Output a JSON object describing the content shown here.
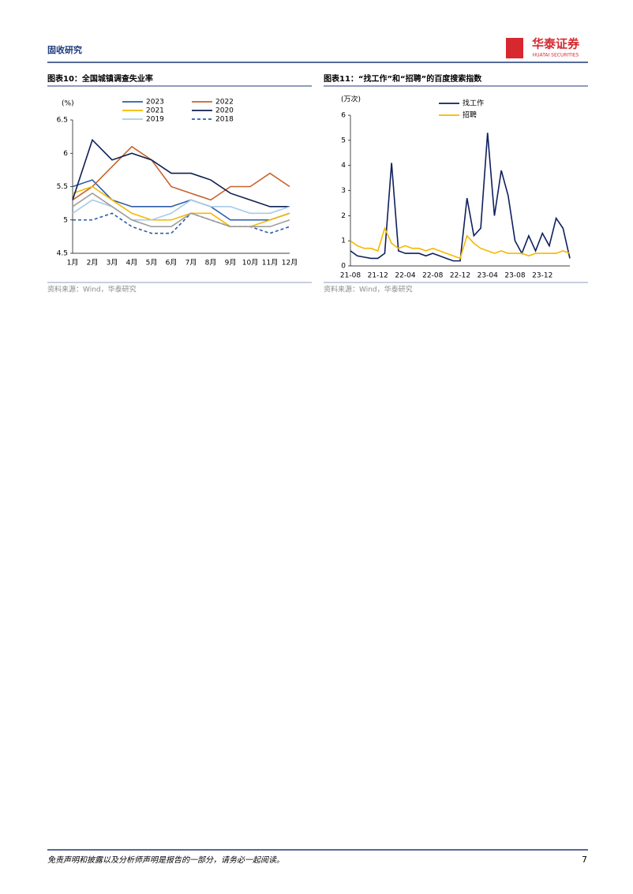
{
  "header": {
    "section": "固收研究",
    "logo_cn": "华泰证券",
    "logo_en": "HUATAI SECURITIES"
  },
  "chart_data": [
    {
      "type": "line",
      "title": "图表10：全国城镇调查失业率",
      "y_label": "(%)",
      "source": "资料来源：Wind，华泰研究",
      "categories": [
        "1月",
        "2月",
        "3月",
        "4月",
        "5月",
        "6月",
        "7月",
        "8月",
        "9月",
        "10月",
        "11月",
        "12月"
      ],
      "ylim": [
        4.5,
        6.5
      ],
      "yticks": [
        4.5,
        5.0,
        5.5,
        6.0,
        6.5
      ],
      "series": [
        {
          "name": "2023",
          "color": "#2e5ca8",
          "values": [
            5.5,
            5.6,
            5.3,
            5.2,
            5.2,
            5.2,
            5.3,
            5.2,
            5.0,
            5.0,
            5.0,
            5.1
          ]
        },
        {
          "name": "2022",
          "color": "#c8622a",
          "values": [
            5.3,
            5.5,
            5.8,
            6.1,
            5.9,
            5.5,
            5.4,
            5.3,
            5.5,
            5.5,
            5.7,
            5.5
          ]
        },
        {
          "name": "2021",
          "color": "#f5b800",
          "values": [
            5.4,
            5.5,
            5.3,
            5.1,
            5.0,
            5.0,
            5.1,
            5.1,
            4.9,
            4.9,
            5.0,
            5.1
          ]
        },
        {
          "name": "2020",
          "color": "#0f1f4f",
          "values": [
            5.3,
            6.2,
            5.9,
            6.0,
            5.9,
            5.7,
            5.7,
            5.6,
            5.4,
            5.3,
            5.2,
            5.2
          ]
        },
        {
          "name": "2019",
          "color": "#a9cbe6",
          "values": [
            5.1,
            5.3,
            5.2,
            5.0,
            5.0,
            5.1,
            5.3,
            5.2,
            5.2,
            5.1,
            5.1,
            5.2
          ]
        },
        {
          "name": "2018",
          "color": "#2e5ca8",
          "style": "dashed",
          "values": [
            5.0,
            5.0,
            5.1,
            4.9,
            4.8,
            4.8,
            5.1,
            5.0,
            4.9,
            4.9,
            4.8,
            4.9
          ]
        },
        {
          "color": "#9e9e9e",
          "values": [
            5.2,
            5.4,
            5.2,
            5.0,
            4.9,
            4.9,
            5.1,
            5.0,
            4.9,
            4.9,
            4.9,
            5.0
          ]
        }
      ]
    },
    {
      "type": "line",
      "title": "图表11：“找工作”和“招聘”的百度搜索指数",
      "y_label": "(万次)",
      "source": "资料来源：Wind，华泰研究",
      "x": [
        "21-08",
        "21-09",
        "21-10",
        "21-11",
        "21-12",
        "22-01",
        "22-02",
        "22-03",
        "22-04",
        "22-05",
        "22-06",
        "22-07",
        "22-08",
        "22-09",
        "22-10",
        "22-11",
        "22-12",
        "23-01",
        "23-02",
        "23-03",
        "23-04",
        "23-05",
        "23-06",
        "23-07",
        "23-08",
        "23-09",
        "23-10",
        "23-11",
        "23-12",
        "24-01",
        "24-02",
        "24-03",
        "24-04"
      ],
      "xticks": [
        "21-08",
        "21-12",
        "22-04",
        "22-08",
        "22-12",
        "23-04",
        "23-08",
        "23-12"
      ],
      "ylim": [
        0,
        6
      ],
      "yticks": [
        0,
        1,
        2,
        3,
        4,
        5,
        6
      ],
      "series": [
        {
          "name": "找工作",
          "color": "#0f1f5f",
          "values": [
            0.6,
            0.4,
            0.35,
            0.3,
            0.3,
            0.5,
            4.1,
            0.6,
            0.5,
            0.5,
            0.5,
            0.4,
            0.5,
            0.4,
            0.3,
            0.2,
            0.2,
            2.7,
            1.2,
            1.5,
            5.3,
            2.0,
            3.8,
            2.8,
            1.0,
            0.5,
            1.2,
            0.6,
            1.3,
            0.8,
            1.9,
            1.5,
            0.3
          ]
        },
        {
          "name": "招聘",
          "color": "#f5b800",
          "values": [
            1.0,
            0.8,
            0.7,
            0.7,
            0.6,
            1.5,
            0.9,
            0.7,
            0.8,
            0.7,
            0.7,
            0.6,
            0.7,
            0.6,
            0.5,
            0.4,
            0.3,
            1.2,
            0.9,
            0.7,
            0.6,
            0.5,
            0.6,
            0.5,
            0.5,
            0.5,
            0.4,
            0.5,
            0.5,
            0.5,
            0.5,
            0.6,
            0.5
          ]
        }
      ]
    }
  ],
  "footer": {
    "disclaimer": "免责声明和披露以及分析师声明是报告的一部分，请务必一起阅读。",
    "page": "7"
  }
}
